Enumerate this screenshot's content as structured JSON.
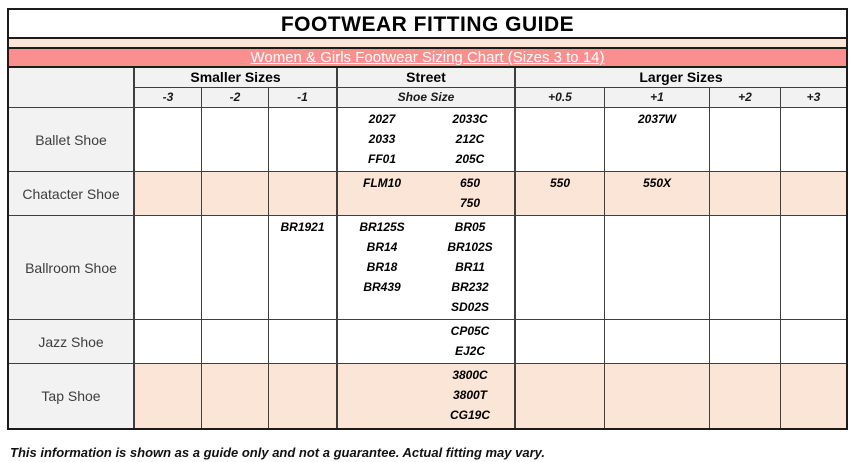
{
  "title": "FOOTWEAR FITTING GUIDE",
  "banner": {
    "text": "Women & Girls Footwear Sizing Chart (Sizes 3 to 14)"
  },
  "header": {
    "smaller": "Smaller Sizes",
    "street": "Street",
    "larger": "Larger Sizes",
    "subcols": [
      "-3",
      "-2",
      "-1",
      "Shoe Size",
      "+0.5",
      "+1",
      "+2",
      "+3"
    ]
  },
  "rows": [
    {
      "label": "Ballet Shoe",
      "highlight": false,
      "cells": {
        "minus3": [],
        "minus2": [],
        "minus1": [],
        "shoe_left": [
          "2027",
          "2033",
          "FF01"
        ],
        "shoe_right": [
          "2033C",
          "212C",
          "205C"
        ],
        "plus05": [],
        "plus1": [
          "2037W"
        ],
        "plus2": [],
        "plus3": []
      }
    },
    {
      "label": "Chatacter Shoe",
      "highlight": true,
      "cells": {
        "minus3": [],
        "minus2": [],
        "minus1": [],
        "shoe_left": [
          "FLM10"
        ],
        "shoe_right": [
          "650",
          "750"
        ],
        "plus05": [
          "550"
        ],
        "plus1": [
          "550X"
        ],
        "plus2": [],
        "plus3": []
      }
    },
    {
      "label": "Ballroom Shoe",
      "highlight": false,
      "cells": {
        "minus3": [],
        "minus2": [],
        "minus1": [
          "BR1921"
        ],
        "shoe_left": [
          "BR125S",
          "BR14",
          "BR18",
          "BR439"
        ],
        "shoe_right": [
          "BR05",
          "BR102S",
          "BR11",
          "BR232",
          "SD02S"
        ],
        "plus05": [],
        "plus1": [],
        "plus2": [],
        "plus3": []
      }
    },
    {
      "label": "Jazz Shoe",
      "highlight": false,
      "cells": {
        "minus3": [],
        "minus2": [],
        "minus1": [],
        "shoe_left": [],
        "shoe_right": [
          "CP05C",
          "EJ2C"
        ],
        "plus05": [],
        "plus1": [],
        "plus2": [],
        "plus3": []
      }
    },
    {
      "label": "Tap Shoe",
      "highlight": true,
      "cells": {
        "minus3": [],
        "minus2": [],
        "minus1": [],
        "shoe_left": [],
        "shoe_right": [
          "3800C",
          "3800T",
          "CG19C"
        ],
        "plus05": [],
        "plus1": [],
        "plus2": [],
        "plus3": []
      }
    }
  ],
  "footer": "This information is shown as a guide only and not a guarantee. Actual fitting may vary.",
  "colors": {
    "banner": "#F98F8F",
    "strip": "#FBE5D6",
    "highlight": "#FBE5D6",
    "label_bg": "#F2F2F2"
  }
}
